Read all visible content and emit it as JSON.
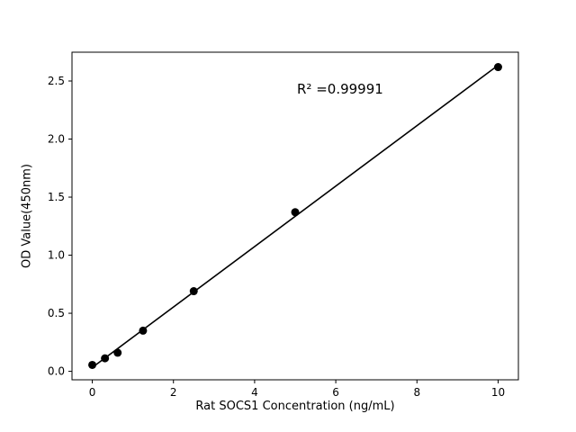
{
  "chart_data": {
    "type": "scatter",
    "title": "",
    "xlabel": "Rat SOCS1 Concentration (ng/mL)",
    "ylabel": "OD Value(450nm)",
    "annotation": "R² =0.99991",
    "x": [
      0,
      0.3125,
      0.625,
      1.25,
      2.5,
      5,
      10
    ],
    "y": [
      0.055,
      0.112,
      0.16,
      0.35,
      0.69,
      1.37,
      2.62
    ],
    "xlim": [
      -0.5,
      10.5
    ],
    "ylim": [
      -0.073,
      2.748
    ],
    "xticks": [
      0,
      2,
      4,
      6,
      8,
      10
    ],
    "yticks": [
      0.0,
      0.5,
      1.0,
      1.5,
      2.0,
      2.5
    ],
    "marker_color": "#000000",
    "line_color": "#000000",
    "background_color": "#ffffff",
    "grid": false,
    "legend": null
  }
}
